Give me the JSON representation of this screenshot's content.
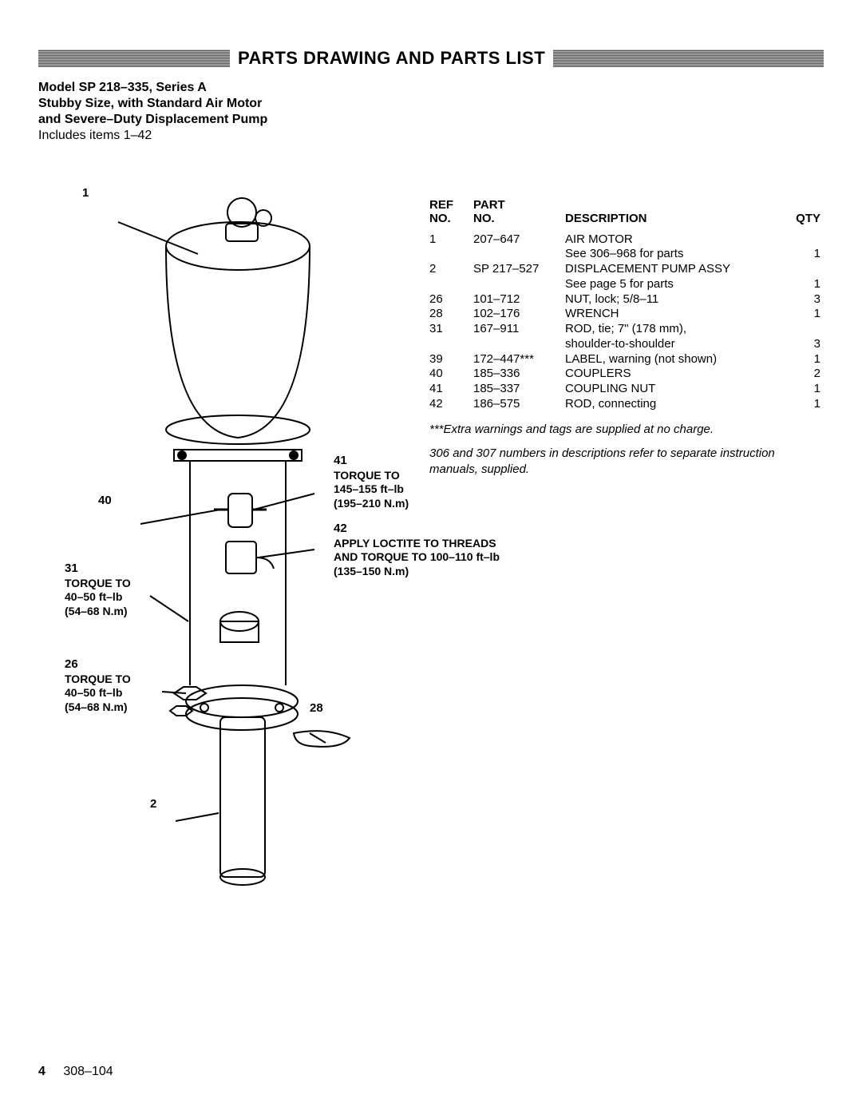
{
  "title": "PARTS DRAWING AND PARTS LIST",
  "model": {
    "line1": "Model SP 218–335, Series A",
    "line2": "Stubby Size, with Standard Air Motor",
    "line3": "and Severe–Duty Displacement Pump",
    "line4": "Includes items 1–42"
  },
  "callouts": {
    "c1": {
      "num": "1"
    },
    "c40": {
      "num": "40"
    },
    "c31": {
      "num": "31",
      "l1": "TORQUE TO",
      "l2": "40–50 ft–lb",
      "l3": "(54–68 N.m)"
    },
    "c26": {
      "num": "26",
      "l1": "TORQUE TO",
      "l2": "40–50 ft–lb",
      "l3": "(54–68 N.m)"
    },
    "c2": {
      "num": "2"
    },
    "c28": {
      "num": "28"
    },
    "c41": {
      "num": "41",
      "l1": "TORQUE TO",
      "l2": "145–155 ft–lb",
      "l3": "(195–210 N.m)"
    },
    "c42": {
      "num": "42",
      "l1": "APPLY LOCTITE TO THREADS",
      "l2": "AND TORQUE TO 100–110 ft–lb",
      "l3": "(135–150 N.m)"
    }
  },
  "table": {
    "headers": {
      "ref": "REF\nNO.",
      "part": "PART\nNO.",
      "desc": "DESCRIPTION",
      "qty": "QTY"
    },
    "rows": [
      {
        "ref": "1",
        "part": "207–647",
        "desc": "AIR MOTOR",
        "sub": "See 306–968 for parts",
        "qty": "1"
      },
      {
        "ref": "2",
        "part": "SP 217–527",
        "desc": "DISPLACEMENT PUMP ASSY",
        "sub": "See page 5 for parts",
        "qty": "1"
      },
      {
        "ref": "26",
        "part": "101–712",
        "desc": "NUT, lock; 5/8–11",
        "qty": "3"
      },
      {
        "ref": "28",
        "part": "102–176",
        "desc": "WRENCH",
        "qty": "1"
      },
      {
        "ref": "31",
        "part": "167–911",
        "desc": "ROD, tie; 7\" (178 mm),",
        "sub": "shoulder-to-shoulder",
        "qty": "3"
      },
      {
        "ref": "39",
        "part": "172–447***",
        "desc": "LABEL, warning (not shown)",
        "qty": "1"
      },
      {
        "ref": "40",
        "part": "185–336",
        "desc": "COUPLERS",
        "qty": "2"
      },
      {
        "ref": "41",
        "part": "185–337",
        "desc": "COUPLING NUT",
        "qty": "1"
      },
      {
        "ref": "42",
        "part": "186–575",
        "desc": "ROD, connecting",
        "qty": "1"
      }
    ]
  },
  "notes": {
    "n1": "***Extra warnings and tags are supplied at no charge.",
    "n2": "306 and 307 numbers in descriptions refer to separate instruction manuals, supplied."
  },
  "footer": {
    "page": "4",
    "doc": "308–104"
  }
}
